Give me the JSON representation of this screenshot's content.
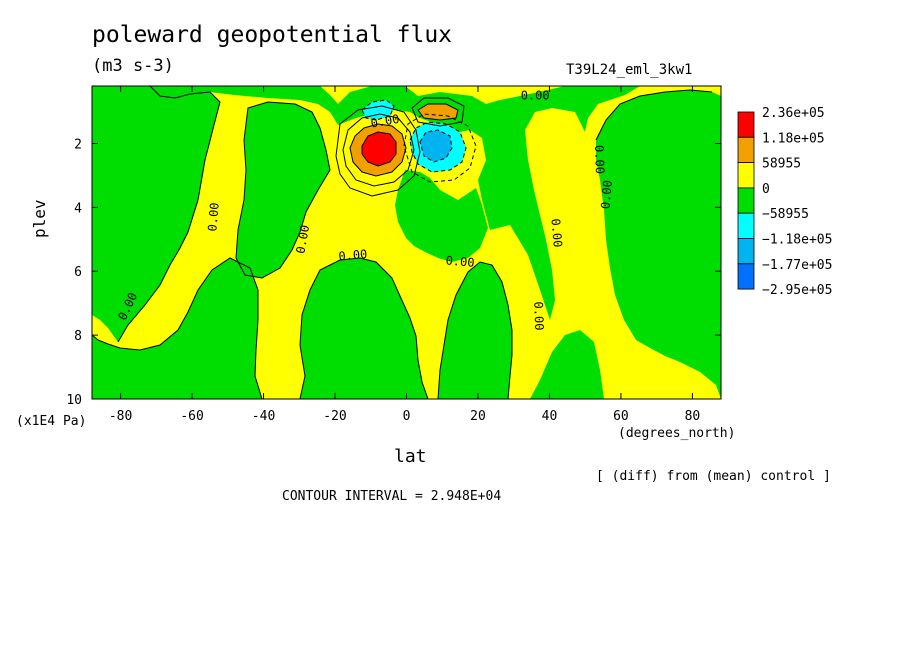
{
  "chart_data": {
    "type": "heatmap",
    "title": "poleward geopotential flux",
    "units": "(m3 s-3)",
    "run_label": "T39L24_eml_3kw1",
    "xlabel": "lat",
    "xunits": "(degrees_north)",
    "ylabel": "plev",
    "yunits": "(x1E4 Pa)",
    "xlim": [
      -88,
      88
    ],
    "ylim": [
      10,
      0.2
    ],
    "xticks": [
      "-80",
      "-60",
      "-40",
      "-20",
      "0",
      "20",
      "40",
      "60",
      "80"
    ],
    "xtick_values": [
      -80,
      -60,
      -40,
      -20,
      0,
      20,
      40,
      60,
      80
    ],
    "yticks": [
      "2",
      "4",
      "6",
      "8",
      "10"
    ],
    "ytick_values": [
      2,
      4,
      6,
      8,
      10
    ],
    "legend": {
      "placement": "right",
      "entries": [
        {
          "label": "2.36e+05",
          "color": "#ff0000"
        },
        {
          "label": "1.18e+05",
          "color": "#f0a000"
        },
        {
          "label": "58955",
          "color": "#ffff00"
        },
        {
          "label": "0",
          "color": "#00dd00"
        },
        {
          "label": "−58955",
          "color": "#00ffff"
        },
        {
          "label": "−1.18e+05",
          "color": "#00b4f0"
        },
        {
          "label": "−1.77e+05",
          "color": "#0070ff"
        },
        {
          "label": "−2.95e+05",
          "color": null
        }
      ]
    },
    "contour_labels": [
      {
        "text": "0.00",
        "lat": 36,
        "plev": 0.5,
        "angle": 0
      },
      {
        "text": "0.00",
        "lat": -6,
        "plev": 1.3,
        "angle": -10
      },
      {
        "text": "0.00",
        "lat": -78,
        "plev": 7.1,
        "angle": -65
      },
      {
        "text": "0.00",
        "lat": -54,
        "plev": 4.3,
        "angle": -85
      },
      {
        "text": "0.00",
        "lat": -29,
        "plev": 5.0,
        "angle": -80
      },
      {
        "text": "0.00",
        "lat": -15,
        "plev": 5.5,
        "angle": -5
      },
      {
        "text": "0.00",
        "lat": 15,
        "plev": 5.7,
        "angle": 5
      },
      {
        "text": "0.00",
        "lat": 42,
        "plev": 4.8,
        "angle": 85
      },
      {
        "text": "0.00",
        "lat": 37,
        "plev": 7.4,
        "angle": 88
      },
      {
        "text": "0.00",
        "lat": 56,
        "plev": 3.6,
        "angle": -85
      },
      {
        "text": "0.00",
        "lat": 54,
        "plev": 2.5,
        "angle": 88
      }
    ],
    "features": [
      {
        "name": "positive-maximum",
        "lat": -9,
        "plev": 2.0,
        "level": "2.36e+05"
      },
      {
        "name": "negative-minimum",
        "lat": 8,
        "plev": 2.0,
        "level": "−1.18e+05"
      }
    ],
    "subtitle_note": "[ (diff) from (mean) control ]",
    "contour_interval": "CONTOUR INTERVAL = 2.948E+04"
  },
  "colors": {
    "yellow": "#ffff00",
    "green": "#00dd00",
    "orange": "#f0a000",
    "red": "#ff0000",
    "cyan": "#00ffff",
    "lightblue": "#00b4f0",
    "blue": "#0070ff"
  }
}
